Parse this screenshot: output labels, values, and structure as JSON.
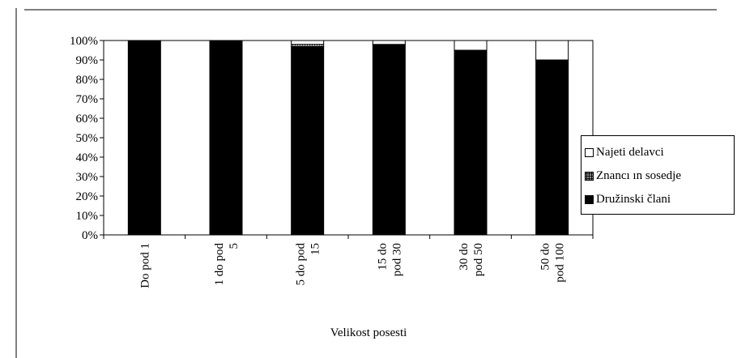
{
  "chart_data": {
    "type": "bar",
    "stacked": true,
    "title": "",
    "xlabel": "Velikost posesti",
    "ylabel": "",
    "ylim": [
      0,
      100
    ],
    "y_ticks": [
      "0%",
      "10%",
      "20%",
      "30%",
      "40%",
      "50%",
      "60%",
      "70%",
      "80%",
      "90%",
      "100%"
    ],
    "categories": [
      [
        "Do pod 1"
      ],
      [
        "1 do pod",
        "5"
      ],
      [
        "5 do pod",
        "15"
      ],
      [
        "15 do",
        "pod 30"
      ],
      [
        "30 do",
        "pod 50"
      ],
      [
        "50 do",
        "pod 100"
      ]
    ],
    "series": [
      {
        "name": "Družinski člani",
        "color": "#000000",
        "values": [
          100,
          100,
          97,
          98,
          95,
          90
        ]
      },
      {
        "name": "Znancı ın sosedje",
        "color": "#000000",
        "pattern": "dots",
        "values": [
          0,
          0,
          1,
          0,
          0,
          0
        ]
      },
      {
        "name": "Najeti delavci",
        "color": "#ffffff",
        "values": [
          0,
          0,
          2,
          2,
          5,
          10
        ]
      }
    ],
    "legend_position": "right",
    "grid": false
  }
}
